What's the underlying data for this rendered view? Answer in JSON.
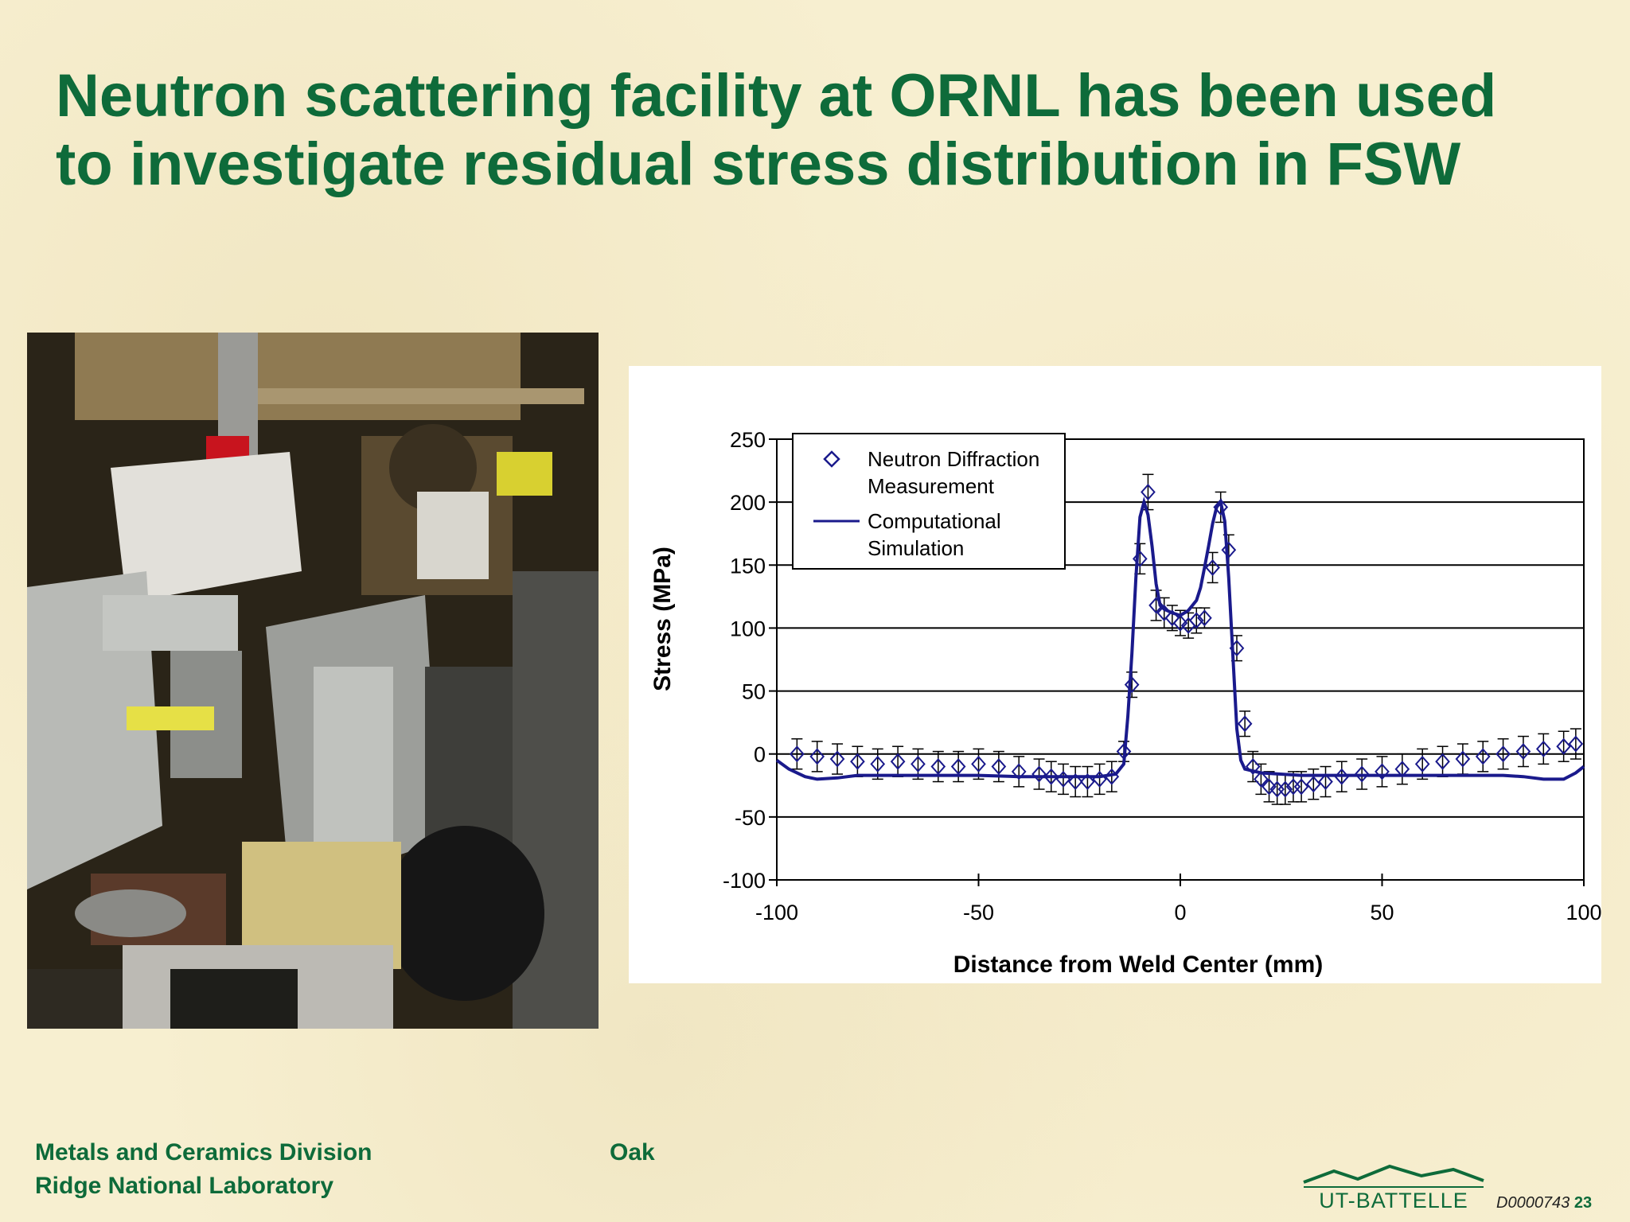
{
  "slide": {
    "title_line1": "Neutron scattering facility at ORNL has been used",
    "title_line2": "to investigate residual stress distribution in FSW",
    "footer_left_line1": "Metals and Ceramics Division",
    "footer_left_line2": "Ridge National Laboratory",
    "footer_mid": "Oak",
    "logo_text": "UT-BATTELLE",
    "doc_id": "D0000743",
    "page_number": "23",
    "colors": {
      "title": "#0e6b3a",
      "background": "#f7efd0",
      "series": "#1a1a8c"
    }
  },
  "photo": {
    "icon": "neutron-diffractometer-photo"
  },
  "chart_data": {
    "type": "line",
    "title": "",
    "xlabel": "Distance from Weld Center (mm)",
    "ylabel": "Stress (MPa)",
    "xlim": [
      -100,
      100
    ],
    "ylim": [
      -100,
      250
    ],
    "xticks": [
      -100,
      -50,
      0,
      50,
      100
    ],
    "yticks": [
      250,
      200,
      150,
      100,
      50,
      0,
      -50,
      -100
    ],
    "x_tick_labels": [
      "-100",
      "-50",
      "0",
      "50",
      "100"
    ],
    "y_tick_labels": [
      "250",
      "200",
      "150",
      "100",
      "50",
      "0",
      "-50",
      "-100"
    ],
    "grid": "horizontal",
    "legend_position": "top-left",
    "legend": [
      {
        "label_line1": "Neutron Diffraction",
        "label_line2": "Measurement",
        "marker": "diamond-icon"
      },
      {
        "label_line1": "Computational",
        "label_line2": "Simulation",
        "marker": "line"
      }
    ],
    "series": [
      {
        "name": "Neutron Diffraction Measurement",
        "kind": "scatter-errorbar",
        "points": [
          {
            "x": -95,
            "y": 0,
            "err": 12
          },
          {
            "x": -90,
            "y": -2,
            "err": 12
          },
          {
            "x": -85,
            "y": -4,
            "err": 12
          },
          {
            "x": -80,
            "y": -6,
            "err": 12
          },
          {
            "x": -75,
            "y": -8,
            "err": 12
          },
          {
            "x": -70,
            "y": -6,
            "err": 12
          },
          {
            "x": -65,
            "y": -8,
            "err": 12
          },
          {
            "x": -60,
            "y": -10,
            "err": 12
          },
          {
            "x": -55,
            "y": -10,
            "err": 12
          },
          {
            "x": -50,
            "y": -8,
            "err": 12
          },
          {
            "x": -45,
            "y": -10,
            "err": 12
          },
          {
            "x": -40,
            "y": -14,
            "err": 12
          },
          {
            "x": -35,
            "y": -16,
            "err": 12
          },
          {
            "x": -32,
            "y": -18,
            "err": 12
          },
          {
            "x": -29,
            "y": -20,
            "err": 12
          },
          {
            "x": -26,
            "y": -22,
            "err": 12
          },
          {
            "x": -23,
            "y": -22,
            "err": 12
          },
          {
            "x": -20,
            "y": -20,
            "err": 12
          },
          {
            "x": -17,
            "y": -18,
            "err": 12
          },
          {
            "x": -14,
            "y": 2,
            "err": 8
          },
          {
            "x": -12,
            "y": 55,
            "err": 10
          },
          {
            "x": -10,
            "y": 155,
            "err": 12
          },
          {
            "x": -8,
            "y": 208,
            "err": 14
          },
          {
            "x": -6,
            "y": 118,
            "err": 12
          },
          {
            "x": -4,
            "y": 112,
            "err": 12
          },
          {
            "x": -2,
            "y": 108,
            "err": 10
          },
          {
            "x": 0,
            "y": 104,
            "err": 10
          },
          {
            "x": 2,
            "y": 102,
            "err": 10
          },
          {
            "x": 4,
            "y": 106,
            "err": 10
          },
          {
            "x": 6,
            "y": 108,
            "err": 8
          },
          {
            "x": 8,
            "y": 148,
            "err": 12
          },
          {
            "x": 10,
            "y": 196,
            "err": 12
          },
          {
            "x": 12,
            "y": 162,
            "err": 12
          },
          {
            "x": 14,
            "y": 84,
            "err": 10
          },
          {
            "x": 16,
            "y": 24,
            "err": 10
          },
          {
            "x": 18,
            "y": -10,
            "err": 12
          },
          {
            "x": 20,
            "y": -20,
            "err": 12
          },
          {
            "x": 22,
            "y": -26,
            "err": 12
          },
          {
            "x": 24,
            "y": -28,
            "err": 12
          },
          {
            "x": 26,
            "y": -28,
            "err": 12
          },
          {
            "x": 28,
            "y": -26,
            "err": 12
          },
          {
            "x": 30,
            "y": -26,
            "err": 12
          },
          {
            "x": 33,
            "y": -24,
            "err": 12
          },
          {
            "x": 36,
            "y": -22,
            "err": 12
          },
          {
            "x": 40,
            "y": -18,
            "err": 12
          },
          {
            "x": 45,
            "y": -16,
            "err": 12
          },
          {
            "x": 50,
            "y": -14,
            "err": 12
          },
          {
            "x": 55,
            "y": -12,
            "err": 12
          },
          {
            "x": 60,
            "y": -8,
            "err": 12
          },
          {
            "x": 65,
            "y": -6,
            "err": 12
          },
          {
            "x": 70,
            "y": -4,
            "err": 12
          },
          {
            "x": 75,
            "y": -2,
            "err": 12
          },
          {
            "x": 80,
            "y": 0,
            "err": 12
          },
          {
            "x": 85,
            "y": 2,
            "err": 12
          },
          {
            "x": 90,
            "y": 4,
            "err": 12
          },
          {
            "x": 95,
            "y": 6,
            "err": 12
          },
          {
            "x": 98,
            "y": 8,
            "err": 12
          }
        ]
      },
      {
        "name": "Computational Simulation",
        "kind": "line",
        "x": [
          -100,
          -97,
          -93,
          -90,
          -85,
          -80,
          -70,
          -60,
          -50,
          -40,
          -30,
          -20,
          -16,
          -14,
          -13,
          -12,
          -11,
          -10,
          -9,
          -8,
          -7,
          -6,
          -5,
          -4,
          -2,
          0,
          2,
          4,
          5,
          6,
          7,
          8,
          9,
          10,
          11,
          12,
          13,
          14,
          15,
          16,
          20,
          30,
          40,
          50,
          60,
          70,
          80,
          85,
          90,
          95,
          98,
          100
        ],
        "y": [
          -5,
          -12,
          -18,
          -20,
          -19,
          -17,
          -17,
          -17,
          -17,
          -18,
          -18,
          -18,
          -16,
          -8,
          30,
          80,
          140,
          188,
          200,
          190,
          165,
          135,
          118,
          115,
          112,
          110,
          114,
          122,
          132,
          148,
          165,
          183,
          196,
          200,
          185,
          140,
          80,
          20,
          -5,
          -12,
          -15,
          -17,
          -17,
          -17,
          -17,
          -17,
          -17,
          -18,
          -20,
          -20,
          -15,
          -10
        ]
      }
    ]
  }
}
